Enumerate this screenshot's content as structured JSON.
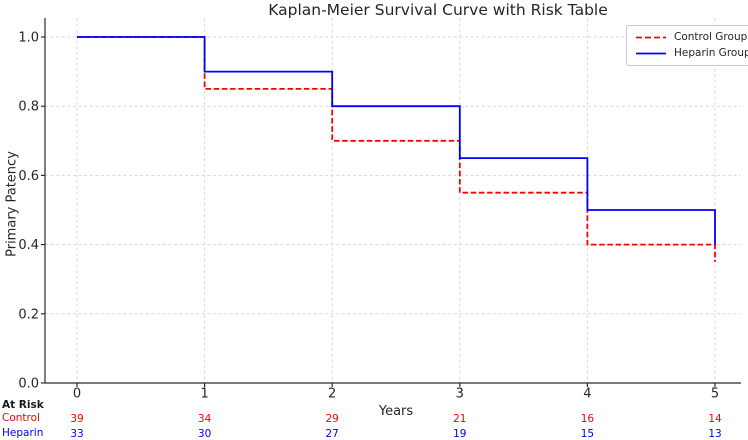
{
  "chart_data": {
    "type": "line",
    "subtype": "kaplan-meier-step",
    "title": "Kaplan-Meier Survival Curve with Risk Table",
    "xlabel": "Years",
    "ylabel": "Primary Patency",
    "x": [
      0,
      1,
      2,
      3,
      4,
      5
    ],
    "xtick_labels": [
      "0",
      "1",
      "2",
      "3",
      "4",
      "5"
    ],
    "ytick_values": [
      0.0,
      0.2,
      0.4,
      0.6,
      0.8,
      1.0
    ],
    "ytick_labels": [
      "0.0",
      "0.2",
      "0.4",
      "0.6",
      "0.8",
      "1.0"
    ],
    "xlim": [
      -0.25,
      5.2
    ],
    "ylim": [
      0.0,
      1.055
    ],
    "grid": true,
    "grid_style": "dashed-lightgray",
    "legend_position": "upper right",
    "series": [
      {
        "name": "Control Group",
        "color": "#ff0000",
        "line_style": "dashed",
        "step_values": [
          1.0,
          0.85,
          0.7,
          0.55,
          0.4,
          0.35
        ]
      },
      {
        "name": "Heparin Group",
        "color": "#0000ff",
        "line_style": "solid",
        "step_values": [
          1.0,
          0.9,
          0.8,
          0.65,
          0.5,
          0.4
        ]
      }
    ]
  },
  "risk_table": {
    "header": "At Risk",
    "rows": [
      {
        "label": "Control",
        "color": "#ff0000",
        "values": [
          "39",
          "34",
          "29",
          "21",
          "16",
          "14"
        ]
      },
      {
        "label": "Heparin",
        "color": "#0000ff",
        "values": [
          "33",
          "30",
          "27",
          "19",
          "15",
          "13"
        ]
      }
    ]
  },
  "colors": {
    "spine": "#2a2a2a",
    "grid": "#d8d8d8",
    "tick_text": "#262626"
  }
}
